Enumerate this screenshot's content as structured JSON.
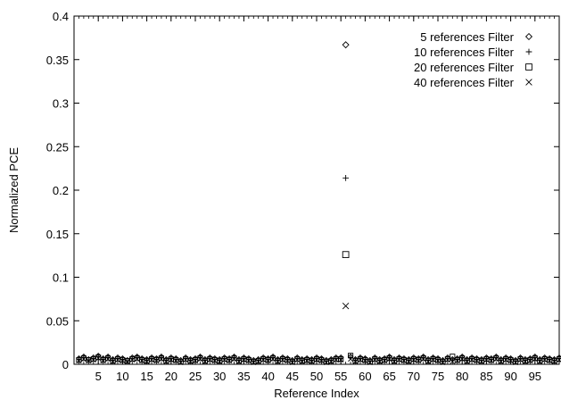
{
  "chart_data": {
    "type": "scatter",
    "title": "",
    "xlabel": "Reference Index",
    "ylabel": "Normalized PCE",
    "xlim": [
      0,
      100
    ],
    "ylim": [
      0,
      0.4
    ],
    "x_ticks": [
      5,
      10,
      15,
      20,
      25,
      30,
      35,
      40,
      45,
      50,
      55,
      60,
      65,
      70,
      75,
      80,
      85,
      90,
      95
    ],
    "y_ticks": [
      0,
      0.05,
      0.1,
      0.15,
      0.2,
      0.25,
      0.3,
      0.35,
      0.4
    ],
    "y_tick_labels": [
      "0",
      "0.05",
      "0.1",
      "0.15",
      "0.2",
      "0.25",
      "0.3",
      "0.35",
      "0.4"
    ],
    "legend_position": "top-right",
    "grid": false,
    "series": [
      {
        "name": "5 references Filter",
        "marker": "diamond",
        "x": [
          56
        ],
        "y": [
          0.367
        ],
        "baseline_values": [
          0.007,
          0.009,
          0.006,
          0.008,
          0.01,
          0.007,
          0.009,
          0.006,
          0.008,
          0.007,
          0.005,
          0.008,
          0.009,
          0.007,
          0.006,
          0.008,
          0.007,
          0.009,
          0.006,
          0.008,
          0.007,
          0.005,
          0.008,
          0.006,
          0.007,
          0.009,
          0.006,
          0.008,
          0.007,
          0.006,
          0.008,
          0.007,
          0.009,
          0.006,
          0.008,
          0.007,
          0.005,
          0.006,
          0.008,
          0.007,
          0.009,
          0.006,
          0.008,
          0.007,
          0.005,
          0.008,
          0.006,
          0.007,
          0.006,
          0.008,
          0.007,
          0.005,
          0.006,
          0.008,
          0.008,
          0.007,
          0.009,
          0.006,
          0.008,
          0.007,
          0.005,
          0.008,
          0.006,
          0.007,
          0.009,
          0.006,
          0.008,
          0.007,
          0.006,
          0.008,
          0.007,
          0.009,
          0.006,
          0.008,
          0.007,
          0.005,
          0.008,
          0.006,
          0.007,
          0.009,
          0.006,
          0.008,
          0.007,
          0.006,
          0.008,
          0.007,
          0.009,
          0.006,
          0.008,
          0.007,
          0.005,
          0.008,
          0.006,
          0.007,
          0.009,
          0.006,
          0.008,
          0.007,
          0.006,
          0.008
        ]
      },
      {
        "name": "10 references Filter",
        "marker": "plus",
        "x": [
          56
        ],
        "y": [
          0.214
        ],
        "baseline_values": [
          0.006,
          0.008,
          0.005,
          0.007,
          0.009,
          0.006,
          0.008,
          0.005,
          0.007,
          0.006,
          0.004,
          0.007,
          0.008,
          0.006,
          0.005,
          0.007,
          0.006,
          0.008,
          0.005,
          0.007,
          0.006,
          0.004,
          0.007,
          0.005,
          0.006,
          0.008,
          0.005,
          0.007,
          0.006,
          0.005,
          0.007,
          0.006,
          0.008,
          0.005,
          0.007,
          0.006,
          0.004,
          0.005,
          0.007,
          0.006,
          0.008,
          0.005,
          0.007,
          0.006,
          0.004,
          0.007,
          0.005,
          0.006,
          0.005,
          0.007,
          0.006,
          0.004,
          0.005,
          0.007,
          0.007,
          0.006,
          0.008,
          0.005,
          0.007,
          0.006,
          0.004,
          0.007,
          0.005,
          0.006,
          0.008,
          0.005,
          0.007,
          0.006,
          0.005,
          0.007,
          0.006,
          0.008,
          0.005,
          0.007,
          0.006,
          0.004,
          0.007,
          0.005,
          0.006,
          0.008,
          0.005,
          0.007,
          0.006,
          0.005,
          0.007,
          0.006,
          0.008,
          0.005,
          0.007,
          0.006,
          0.004,
          0.007,
          0.005,
          0.006,
          0.008,
          0.005,
          0.007,
          0.006,
          0.005,
          0.007
        ]
      },
      {
        "name": "20 references Filter",
        "marker": "square",
        "x": [
          56
        ],
        "y": [
          0.126
        ],
        "baseline_values": [
          0.005,
          0.007,
          0.005,
          0.006,
          0.008,
          0.005,
          0.007,
          0.004,
          0.006,
          0.005,
          0.004,
          0.006,
          0.007,
          0.005,
          0.004,
          0.006,
          0.005,
          0.007,
          0.004,
          0.006,
          0.005,
          0.003,
          0.006,
          0.004,
          0.005,
          0.007,
          0.004,
          0.006,
          0.005,
          0.004,
          0.006,
          0.005,
          0.007,
          0.004,
          0.006,
          0.005,
          0.003,
          0.004,
          0.006,
          0.005,
          0.007,
          0.004,
          0.006,
          0.005,
          0.003,
          0.006,
          0.004,
          0.005,
          0.004,
          0.006,
          0.005,
          0.003,
          0.004,
          0.006,
          0.006,
          0.005,
          0.01,
          0.004,
          0.006,
          0.005,
          0.003,
          0.006,
          0.004,
          0.005,
          0.007,
          0.004,
          0.006,
          0.005,
          0.004,
          0.006,
          0.005,
          0.007,
          0.004,
          0.006,
          0.005,
          0.003,
          0.006,
          0.009,
          0.005,
          0.007,
          0.004,
          0.006,
          0.005,
          0.004,
          0.006,
          0.005,
          0.007,
          0.004,
          0.006,
          0.005,
          0.003,
          0.006,
          0.004,
          0.005,
          0.007,
          0.004,
          0.006,
          0.005,
          0.004,
          0.006
        ]
      },
      {
        "name": "40 references Filter",
        "marker": "cross",
        "x": [
          56
        ],
        "y": [
          0.067
        ],
        "baseline_values": [
          0.004,
          0.006,
          0.004,
          0.005,
          0.007,
          0.004,
          0.006,
          0.003,
          0.005,
          0.004,
          0.003,
          0.005,
          0.006,
          0.004,
          0.003,
          0.005,
          0.004,
          0.006,
          0.003,
          0.005,
          0.004,
          0.002,
          0.005,
          0.003,
          0.004,
          0.006,
          0.003,
          0.005,
          0.004,
          0.003,
          0.005,
          0.004,
          0.006,
          0.003,
          0.005,
          0.004,
          0.002,
          0.003,
          0.005,
          0.004,
          0.006,
          0.003,
          0.005,
          0.004,
          0.002,
          0.005,
          0.003,
          0.004,
          0.003,
          0.005,
          0.004,
          0.002,
          0.003,
          0.005,
          0.005,
          0.004,
          0.006,
          0.003,
          0.005,
          0.004,
          0.002,
          0.005,
          0.003,
          0.004,
          0.006,
          0.003,
          0.005,
          0.004,
          0.003,
          0.005,
          0.004,
          0.006,
          0.003,
          0.005,
          0.004,
          0.002,
          0.005,
          0.003,
          0.004,
          0.006,
          0.003,
          0.005,
          0.004,
          0.003,
          0.005,
          0.004,
          0.006,
          0.003,
          0.005,
          0.004,
          0.002,
          0.005,
          0.003,
          0.004,
          0.006,
          0.003,
          0.005,
          0.004,
          0.003,
          0.005
        ]
      }
    ]
  }
}
